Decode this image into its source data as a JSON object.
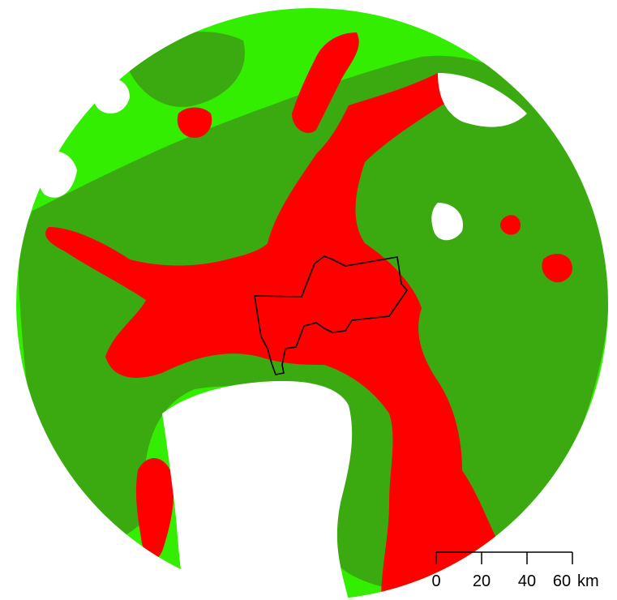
{
  "map": {
    "colors": {
      "background": "#ffffff",
      "light": "#33ee00",
      "mid": "#3aaa10",
      "high": "#ff0000",
      "boundary": "#000000"
    }
  },
  "scale_bar": {
    "ticks": [
      "0",
      "20",
      "40",
      "60"
    ],
    "unit": "km"
  }
}
